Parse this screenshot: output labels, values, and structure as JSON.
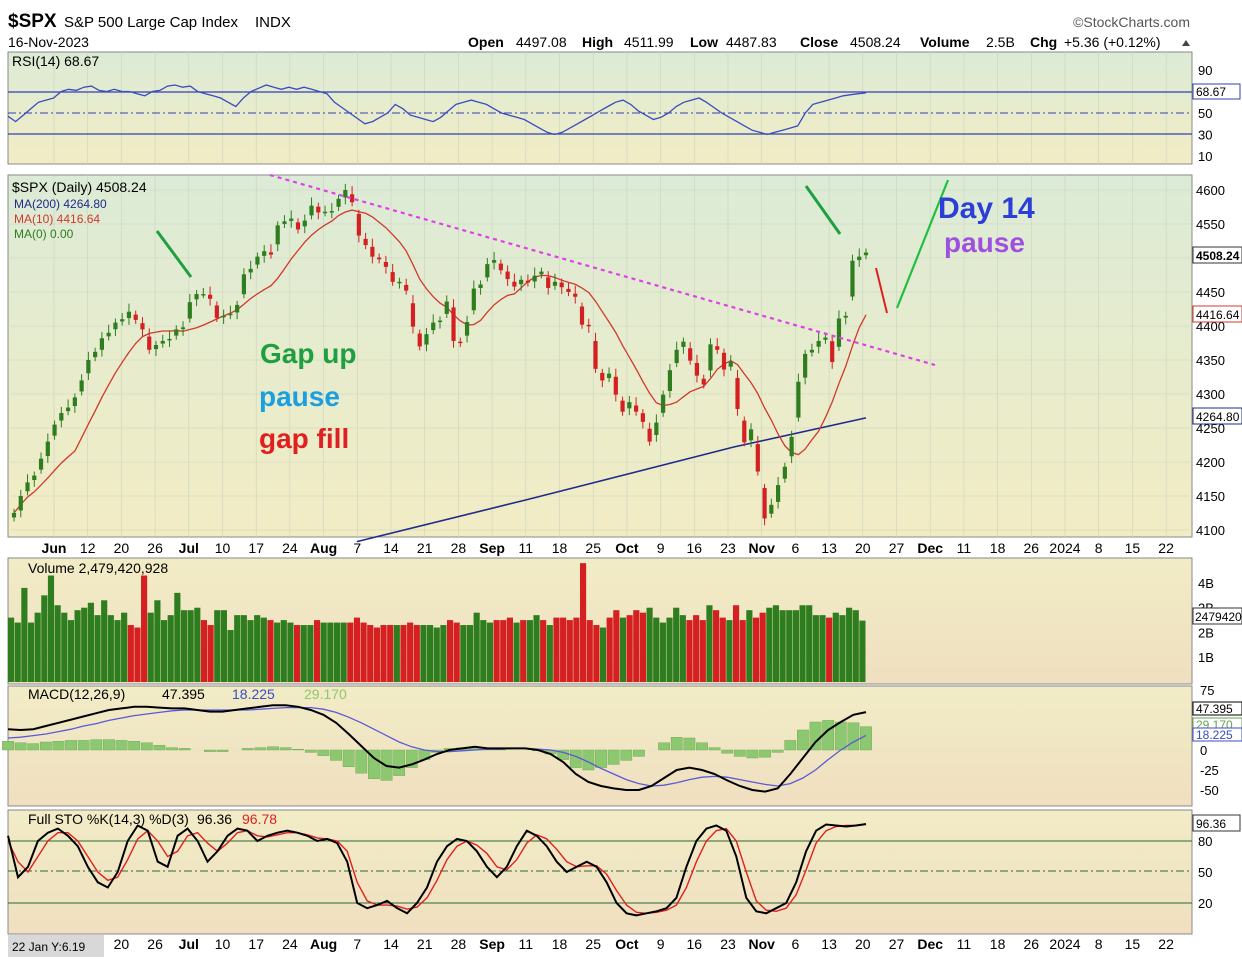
{
  "header": {
    "symbol": "$SPX",
    "name": "S&P 500 Large Cap Index",
    "exchange": "INDX",
    "date": "16-Nov-2023",
    "brand": "©StockCharts.com",
    "open_label": "Open",
    "open": "4497.08",
    "high_label": "High",
    "high": "4511.99",
    "low_label": "Low",
    "low": "4487.83",
    "close_label": "Close",
    "close": "4508.24",
    "volume_label": "Volume",
    "volume": "2.5B",
    "chg_label": "Chg",
    "chg": "+5.36 (+0.12%)"
  },
  "colors": {
    "up": "#2e7d1f",
    "down": "#d42020",
    "ma200": "#1f2a8c",
    "ma10": "#d0392b",
    "trendline": "#e040e8",
    "rsi_line": "#3a4cc0",
    "macd_signal": "#5a5ad8",
    "hist": "#8cc870",
    "sto_d": "#e02020"
  },
  "footer": {
    "left_label": "22 Jan Y:6.19"
  },
  "chart_data": {
    "type": "candlestick",
    "price_panel": {
      "legend": [
        "$SPX (Daily) 4508.24",
        "MA(200) 4264.80",
        "MA(10) 4416.64",
        "MA(0) 0.00"
      ],
      "y_ticks": [
        4100,
        4150,
        4200,
        4250,
        4300,
        4350,
        4400,
        4450,
        4500,
        4550,
        4600
      ],
      "y_range": [
        4085,
        4620
      ],
      "price_tags": [
        "4508.24",
        "4416.64",
        "4264.80"
      ],
      "closes": [
        4125,
        4150,
        4170,
        4180,
        4205,
        4230,
        4255,
        4272,
        4280,
        4295,
        4320,
        4350,
        4362,
        4382,
        4390,
        4405,
        4410,
        4421,
        4409,
        4395,
        4365,
        4372,
        4378,
        4381,
        4395,
        4398,
        4435,
        4447,
        4447,
        4440,
        4412,
        4415,
        4418,
        4431,
        4476,
        4484,
        4502,
        4510,
        4505,
        4548,
        4554,
        4558,
        4542,
        4555,
        4577,
        4567,
        4568,
        4569,
        4587,
        4600,
        4582,
        4533,
        4519,
        4502,
        4498,
        4487,
        4465,
        4465,
        4452,
        4399,
        4370,
        4388,
        4405,
        4408,
        4436,
        4378,
        4375,
        4406,
        4455,
        4461,
        4491,
        4497,
        4482,
        4469,
        4458,
        4468,
        4464,
        4474,
        4480,
        4456,
        4465,
        4457,
        4450,
        4443,
        4402,
        4400,
        4337,
        4320,
        4330,
        4299,
        4274,
        4288,
        4274,
        4259,
        4230,
        4258,
        4299,
        4335,
        4365,
        4377,
        4349,
        4327,
        4314,
        4373,
        4365,
        4336,
        4348,
        4278,
        4229,
        4248,
        4186,
        4117,
        4137,
        4166,
        4193,
        4237,
        4318,
        4359,
        4365,
        4378,
        4383,
        4347,
        4411,
        4415,
        4496,
        4502,
        4508
      ],
      "ma200": [
        {
          "date": "2023-08-04",
          "value": 4083
        },
        {
          "date": "2023-09-08",
          "value": 4145
        },
        {
          "date": "2023-10-20",
          "value": 4222
        },
        {
          "date": "2023-11-16",
          "value": 4264.8
        }
      ]
    },
    "annotations": [
      {
        "text": "Gap up",
        "color": "#1ea040"
      },
      {
        "text": "pause",
        "color": "#1aa0e0"
      },
      {
        "text": "gap fill",
        "color": "#e02020"
      },
      {
        "text": "Day 14",
        "color": "#2b3fd8"
      },
      {
        "text": "pause",
        "color": "#a050e0"
      }
    ],
    "x_ticks": [
      "Jun",
      "12",
      "20",
      "26",
      "Jul",
      "10",
      "17",
      "24",
      "Aug",
      "7",
      "14",
      "21",
      "28",
      "Sep",
      "11",
      "18",
      "25",
      "Oct",
      "9",
      "16",
      "23",
      "Nov",
      "6",
      "13",
      "20",
      "27",
      "Dec",
      "11",
      "18",
      "26",
      "2024",
      "8",
      "15",
      "22"
    ],
    "x_ticks_bottom": [
      "20",
      "26",
      "Jul",
      "10",
      "17",
      "24",
      "Aug",
      "7",
      "14",
      "21",
      "28",
      "Sep",
      "11",
      "18",
      "25",
      "Oct",
      "9",
      "16",
      "23",
      "Nov",
      "6",
      "13",
      "20",
      "27",
      "Dec",
      "11",
      "18",
      "26",
      "2024",
      "8",
      "15",
      "22"
    ],
    "rsi": {
      "label": "RSI(14) 68.67",
      "y_ticks": [
        10,
        30,
        50,
        70,
        90
      ],
      "last": "68.67",
      "values": [
        47,
        42,
        48,
        54,
        60,
        62,
        64,
        70,
        72,
        71,
        74,
        75,
        71,
        70,
        72,
        70,
        70,
        68,
        66,
        70,
        71,
        75,
        76,
        74,
        75,
        70,
        68,
        66,
        64,
        60,
        56,
        64,
        70,
        73,
        76,
        74,
        72,
        74,
        72,
        74,
        72,
        70,
        68,
        60,
        55,
        50,
        45,
        40,
        42,
        46,
        50,
        58,
        54,
        48,
        46,
        44,
        42,
        46,
        52,
        58,
        60,
        62,
        60,
        58,
        54,
        50,
        48,
        46,
        44,
        40,
        36,
        32,
        30,
        32,
        36,
        40,
        44,
        48,
        52,
        56,
        60,
        62,
        58,
        52,
        48,
        44,
        46,
        50,
        56,
        60,
        62,
        64,
        60,
        55,
        50,
        46,
        42,
        38,
        34,
        32,
        30,
        32,
        34,
        36,
        38,
        50,
        58,
        60,
        62,
        64,
        66,
        67,
        68,
        68.67
      ]
    },
    "volume": {
      "label": "Volume 2,479,420,928",
      "y_ticks": [
        "1B",
        "2B",
        "3B",
        "4B"
      ],
      "last": "2479420928",
      "values": [
        2.6,
        2.4,
        3.8,
        2.4,
        2.8,
        3.5,
        4.3,
        3.1,
        2.8,
        2.5,
        2.9,
        3.0,
        3.2,
        2.7,
        3.3,
        2.7,
        2.5,
        2.8,
        2.3,
        2.2,
        4.3,
        2.8,
        3.3,
        2.5,
        2.7,
        3.6,
        2.9,
        2.9,
        3.0,
        2.5,
        2.3,
        2.9,
        2.9,
        2.1,
        2.7,
        2.7,
        2.5,
        2.7,
        2.6,
        2.5,
        2.4,
        2.5,
        2.4,
        2.3,
        2.3,
        2.3,
        2.5,
        2.4,
        2.4,
        2.4,
        2.4,
        2.4,
        2.6,
        2.4,
        2.3,
        2.2,
        2.3,
        2.3,
        2.3,
        2.3,
        2.4,
        2.3,
        2.3,
        2.3,
        2.2,
        2.3,
        2.5,
        2.4,
        2.3,
        2.3,
        2.8,
        2.5,
        2.4,
        2.5,
        2.5,
        2.6,
        2.4,
        2.5,
        2.5,
        2.7,
        2.5,
        2.3,
        2.6,
        2.6,
        2.5,
        2.6,
        4.8,
        2.5,
        2.3,
        2.2,
        2.6,
        2.9,
        2.6,
        2.7,
        2.9,
        2.8,
        3.0,
        2.6,
        2.4,
        2.6,
        3.0,
        2.7,
        2.5,
        2.7,
        2.5,
        3.1,
        2.9,
        2.6,
        2.5,
        3.1,
        2.5,
        2.9,
        2.6,
        2.8,
        3.0,
        3.1,
        2.9,
        2.9,
        2.9,
        3.1,
        3.1,
        2.7,
        2.7,
        2.6,
        2.8,
        2.7,
        3.0,
        2.9,
        2.48
      ]
    },
    "macd": {
      "label_name": "MACD(12,26,9)",
      "macd": "47.395",
      "signal": "18.225",
      "hist": "29.170",
      "y_ticks": [
        -50,
        -25,
        0,
        25,
        50,
        75
      ],
      "macd_values": [
        26,
        25,
        26,
        30,
        34,
        38,
        42,
        46,
        50,
        52,
        54,
        54,
        53,
        52,
        52,
        50,
        48,
        48,
        50,
        52,
        54,
        56,
        56,
        54,
        50,
        44,
        34,
        20,
        5,
        -10,
        -20,
        -22,
        -18,
        -12,
        -5,
        0,
        2,
        4,
        2,
        2,
        2,
        2,
        0,
        -5,
        -15,
        -30,
        -40,
        -45,
        -48,
        -50,
        -50,
        -45,
        -35,
        -25,
        -22,
        -25,
        -30,
        -38,
        -45,
        -50,
        -52,
        -48,
        -30,
        -10,
        10,
        25,
        35,
        44,
        47.395
      ],
      "signal_values": [
        15,
        16,
        18,
        20,
        23,
        26,
        30,
        33,
        37,
        40,
        43,
        45,
        47,
        49,
        50,
        50,
        50,
        50,
        50,
        50,
        51,
        52,
        53,
        53,
        53,
        51,
        47,
        41,
        34,
        26,
        18,
        10,
        4,
        0,
        -2,
        -2,
        -1,
        0,
        1,
        1,
        2,
        2,
        1,
        0,
        -3,
        -8,
        -15,
        -23,
        -30,
        -37,
        -42,
        -45,
        -44,
        -41,
        -37,
        -34,
        -33,
        -34,
        -37,
        -40,
        -43,
        -45,
        -42,
        -35,
        -25,
        -12,
        0,
        10,
        18.225
      ],
      "hist_values": [
        11,
        9,
        8,
        10,
        11,
        12,
        12,
        13,
        13,
        12,
        11,
        9,
        6,
        3,
        2,
        0,
        -2,
        -2,
        0,
        2,
        3,
        4,
        3,
        1,
        -3,
        -7,
        -13,
        -21,
        -29,
        -36,
        -38,
        -32,
        -22,
        -12,
        -3,
        2,
        3,
        4,
        1,
        1,
        0,
        0,
        -1,
        -5,
        -12,
        -22,
        -25,
        -22,
        -18,
        -13,
        -8,
        0,
        9,
        16,
        15,
        9,
        3,
        -4,
        -8,
        -10,
        -9,
        -3,
        12,
        25,
        35,
        37,
        35,
        34,
        29.17
      ]
    },
    "stochastic": {
      "label_name": "Full STO %K(14,3) %D(3)",
      "k": "96.36",
      "d": "96.78",
      "y_ticks": [
        20,
        50,
        80
      ],
      "k_values": [
        85,
        45,
        55,
        80,
        88,
        92,
        85,
        75,
        55,
        40,
        35,
        50,
        80,
        95,
        90,
        60,
        55,
        85,
        92,
        80,
        60,
        70,
        85,
        92,
        90,
        80,
        85,
        88,
        90,
        88,
        85,
        80,
        82,
        78,
        60,
        20,
        15,
        18,
        22,
        15,
        10,
        20,
        35,
        60,
        75,
        82,
        80,
        70,
        55,
        45,
        55,
        75,
        90,
        85,
        75,
        60,
        50,
        55,
        60,
        55,
        40,
        20,
        10,
        8,
        10,
        12,
        15,
        25,
        55,
        80,
        92,
        95,
        90,
        65,
        25,
        12,
        10,
        15,
        20,
        40,
        70,
        90,
        96,
        95,
        94,
        95,
        96.36
      ],
      "d_values": [
        80,
        60,
        50,
        65,
        80,
        88,
        88,
        80,
        65,
        50,
        42,
        45,
        62,
        82,
        90,
        80,
        65,
        70,
        85,
        88,
        78,
        70,
        78,
        88,
        90,
        85,
        84,
        86,
        88,
        88,
        86,
        83,
        82,
        80,
        70,
        40,
        22,
        18,
        18,
        17,
        14,
        16,
        25,
        42,
        62,
        75,
        80,
        76,
        68,
        55,
        52,
        62,
        78,
        86,
        82,
        72,
        60,
        55,
        56,
        56,
        48,
        32,
        18,
        11,
        10,
        11,
        13,
        18,
        35,
        60,
        80,
        90,
        92,
        80,
        50,
        22,
        13,
        12,
        15,
        28,
        52,
        78,
        90,
        94,
        95,
        95,
        96.78
      ]
    }
  }
}
